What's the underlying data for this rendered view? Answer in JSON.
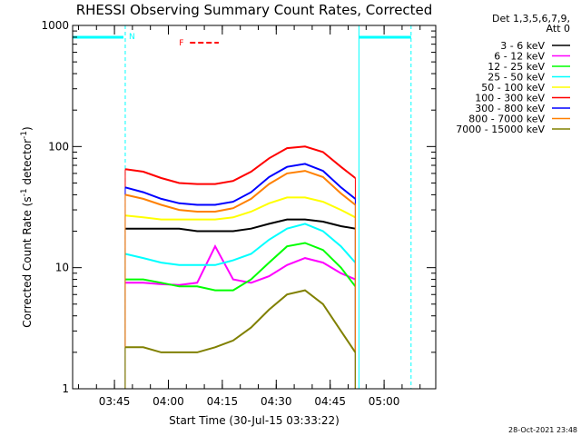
{
  "chart_data": {
    "type": "line",
    "title": "RHESSI Observing Summary Count Rates, Corrected",
    "xlabel": "Start Time (30-Jul-15 03:33:22)",
    "ylabel_main": "Corrected Count Rate (s",
    "ylabel_sup1": "-1",
    "ylabel_mid": " detector",
    "ylabel_sup2": "-1",
    "ylabel_tail": ")",
    "y_scale": "log",
    "ylim": [
      1,
      1000
    ],
    "xlim": [
      "03:33:22",
      "05:14:22"
    ],
    "grid": false,
    "x_ticks": [
      "03:45",
      "04:00",
      "04:15",
      "04:30",
      "04:45",
      "05:00"
    ],
    "y_ticks": [
      "1",
      "10",
      "100",
      "1000"
    ],
    "legend_position": "top-right",
    "legend_header": [
      "Det 1,3,5,6,7,9,",
      "Att 0"
    ],
    "x": [
      "03:48:00",
      "03:53:00",
      "03:58:00",
      "04:03:00",
      "04:08:00",
      "04:13:00",
      "04:18:00",
      "04:23:00",
      "04:28:00",
      "04:33:00",
      "04:38:00",
      "04:43:00",
      "04:48:00",
      "04:52:00"
    ],
    "series": [
      {
        "name": "3 - 6 keV",
        "color": "#000000",
        "values": [
          21,
          21,
          21,
          21,
          20,
          20,
          20,
          21,
          23,
          25,
          25,
          24,
          22,
          21
        ]
      },
      {
        "name": "6 - 12 keV",
        "color": "#ff00ff",
        "values": [
          7.5,
          7.5,
          7.3,
          7.2,
          7.5,
          15,
          8,
          7.5,
          8.5,
          10.5,
          12,
          11,
          9,
          8
        ]
      },
      {
        "name": "12 - 25 keV",
        "color": "#00ff00",
        "values": [
          8,
          8,
          7.5,
          7,
          7,
          6.5,
          6.5,
          8,
          11,
          15,
          16,
          14,
          10,
          7
        ]
      },
      {
        "name": "25 - 50 keV",
        "color": "#00ffff",
        "values": [
          13,
          12,
          11,
          10.5,
          10.5,
          10.5,
          11.5,
          13,
          17,
          21,
          23,
          20,
          15,
          11
        ]
      },
      {
        "name": "50 - 100 keV",
        "color": "#ffff00",
        "values": [
          27,
          26,
          25,
          25,
          25,
          25,
          26,
          29,
          34,
          38,
          38,
          35,
          30,
          26
        ]
      },
      {
        "name": "100 - 300 keV",
        "color": "#ff0000",
        "values": [
          65,
          62,
          55,
          50,
          49,
          49,
          52,
          62,
          80,
          97,
          100,
          90,
          68,
          55
        ]
      },
      {
        "name": "300 - 800 keV",
        "color": "#0000ff",
        "values": [
          46,
          42,
          37,
          34,
          33,
          33,
          35,
          42,
          56,
          68,
          72,
          63,
          46,
          37
        ]
      },
      {
        "name": "800 - 7000 keV",
        "color": "#ff8000",
        "values": [
          40,
          37,
          33,
          30,
          29,
          29,
          31,
          37,
          49,
          60,
          63,
          56,
          41,
          33
        ]
      },
      {
        "name": "7000 - 15000 keV",
        "color": "#808000",
        "values": [
          2.2,
          2.2,
          2,
          2,
          2,
          2.2,
          2.5,
          3.2,
          4.5,
          6,
          6.5,
          5,
          3,
          2
        ]
      }
    ],
    "flag_bars": [
      {
        "label": "",
        "color": "#00ffff",
        "start": "03:33:22",
        "end": "03:47:30"
      },
      {
        "label": "",
        "color": "#00ffff",
        "start": "04:53:00",
        "end": "05:07:30"
      }
    ],
    "flare_bar": {
      "label": "F",
      "color": "#ff0000",
      "start": "04:06:00",
      "end": "04:14:00"
    },
    "night_label": "N",
    "vlines_solid": [
      "03:33:22",
      "04:53:00"
    ],
    "vlines_dashed": [
      "03:48:00",
      "05:07:30"
    ],
    "timestamp": "28-Oct-2021 23:48"
  }
}
